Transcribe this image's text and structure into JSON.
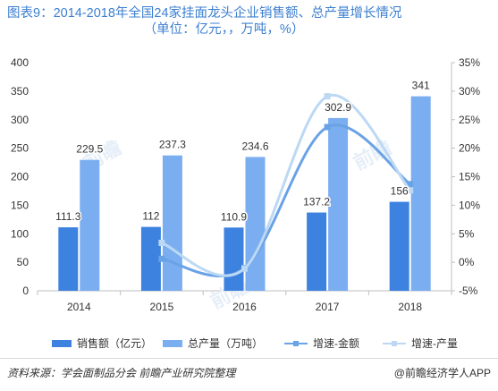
{
  "title_line1": "图表9：2014-2018年全国24家挂面龙头企业销售额、总产量增长情况",
  "title_line2": "（单位：亿元，，万吨，%）",
  "source": "资料来源：学会面制品分会 前瞻产业研究院整理",
  "brand": "@前瞻经济学人APP",
  "colors": {
    "sales_bar": "#3e82e0",
    "output_bar": "#7aaef0",
    "growth_sales": "#6aa2e6",
    "growth_output": "#bcd8f3",
    "title": "#3c7fd0"
  },
  "chart_data": {
    "type": "bar",
    "categories": [
      "2014",
      "2015",
      "2016",
      "2017",
      "2018"
    ],
    "series": [
      {
        "name": "销售额（亿元）",
        "type": "bar",
        "axis": "left",
        "values": [
          111.3,
          112,
          110.9,
          137.2,
          156
        ],
        "labels": [
          "111.3",
          "112",
          "110.9",
          "137.2",
          "156"
        ]
      },
      {
        "name": "总产量（万吨）",
        "type": "bar",
        "axis": "left",
        "values": [
          229.5,
          237.3,
          234.6,
          302.9,
          341
        ],
        "labels": [
          "229.5",
          "237.3",
          "234.6",
          "302.9",
          "341"
        ]
      },
      {
        "name": "增速-金额",
        "type": "line",
        "axis": "right",
        "values": [
          null,
          0.6,
          -1.0,
          23.7,
          13.7
        ]
      },
      {
        "name": "增速-产量",
        "type": "line",
        "axis": "right",
        "values": [
          null,
          3.4,
          -1.1,
          29.1,
          12.6
        ]
      }
    ],
    "y_left": {
      "min": 0,
      "max": 400,
      "ticks": [
        "0",
        "50",
        "100",
        "150",
        "200",
        "250",
        "300",
        "350",
        "400"
      ]
    },
    "y_right": {
      "min": -5,
      "max": 35,
      "ticks": [
        "-5%",
        "0%",
        "5%",
        "10%",
        "15%",
        "20%",
        "25%",
        "30%",
        "35%"
      ]
    },
    "legend_position": "bottom",
    "grid": false
  }
}
